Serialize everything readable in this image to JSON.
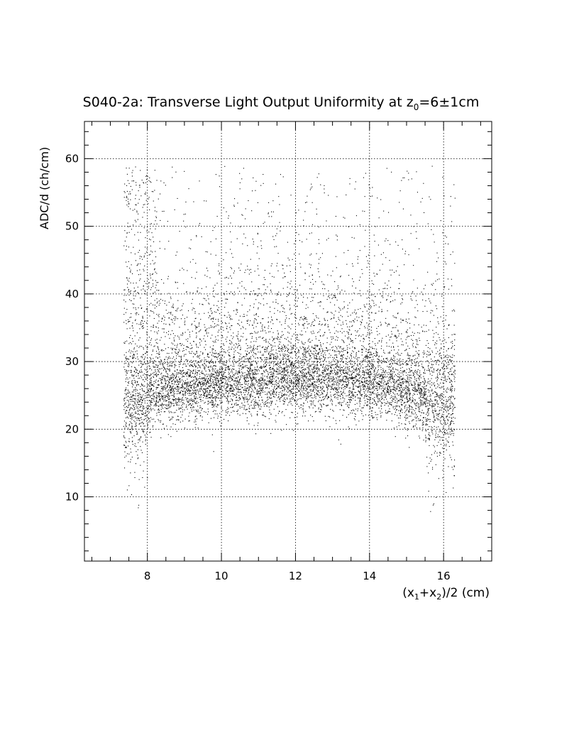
{
  "chart_data": {
    "type": "scatter",
    "title_prefix": "S040-2a: Transverse Light Output Uniformity at z",
    "title_sub": "0",
    "title_suffix": "=6±1cm",
    "xlabel_parts": [
      "(x",
      "1",
      "+x",
      "2",
      ")/2 (cm)"
    ],
    "ylabel": "ADC/d (ch/cm)",
    "xlim": [
      6.3,
      17.3
    ],
    "ylim": [
      0.5,
      65.5
    ],
    "xticks": [
      8,
      10,
      12,
      14,
      16
    ],
    "yticks": [
      10,
      20,
      30,
      40,
      50,
      60
    ],
    "grid": true,
    "point_color": "#000000",
    "series": [
      {
        "density_model": {
          "x_range": [
            7.35,
            16.3
          ],
          "core_mean_by_x": [
            [
              7.5,
              25
            ],
            [
              8.5,
              26
            ],
            [
              10,
              27
            ],
            [
              12,
              27.5
            ],
            [
              13.5,
              27.5
            ],
            [
              15,
              26
            ],
            [
              16,
              25
            ]
          ],
          "core_sd": 2.5,
          "approx_point_count": 9000
        }
      }
    ]
  }
}
